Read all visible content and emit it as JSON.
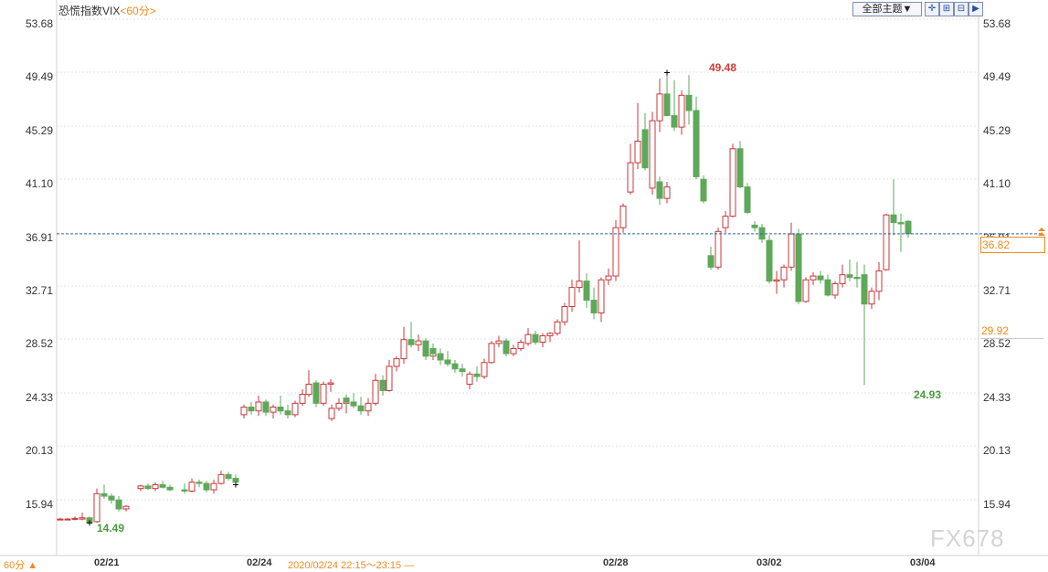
{
  "header": {
    "title": "恐慌指数VIX",
    "period_label": "<60分>",
    "theme_button": "全部主题▼",
    "toolbar_icons": [
      "crosshair-icon",
      "zoom-in-icon",
      "zoom-out-icon",
      "forward-icon"
    ]
  },
  "footer": {
    "period_selector": "60分 ▲",
    "range_label": "2020/02/24 22:15～23:15 —"
  },
  "markers": {
    "current_price": "36.82",
    "previous_close": "29.92",
    "high_label": "49.48",
    "low_label": "24.93",
    "start_low_label": "14.49"
  },
  "watermark": "FX678",
  "colors": {
    "up": "#c8373b",
    "down": "#5ea85a",
    "accent": "#f08a1c",
    "price_line": "#2b5fb3",
    "label_up": "#d23a3a",
    "label_down": "#4a9a3e"
  },
  "chart_data": {
    "type": "candlestick",
    "instrument": "恐慌指数VIX",
    "interval": "60分",
    "y_ticks": [
      "53.68",
      "49.49",
      "45.29",
      "41.10",
      "36.91",
      "32.71",
      "28.52",
      "24.33",
      "20.13",
      "15.94"
    ],
    "ylim": [
      11.75,
      53.68
    ],
    "x_ticks": [
      "02/21",
      "02/24",
      "02/28",
      "03/02",
      "03/04"
    ],
    "current_price": 36.82,
    "previous_close": 29.92,
    "candles": [
      [
        14.4,
        14.5,
        14.3,
        14.4
      ],
      [
        14.4,
        14.5,
        14.3,
        14.4
      ],
      [
        14.4,
        14.6,
        14.3,
        14.45
      ],
      [
        14.4,
        14.9,
        14.3,
        14.5
      ],
      [
        14.5,
        14.6,
        14.1,
        14.1
      ],
      [
        14.2,
        16.8,
        14.1,
        16.4
      ],
      [
        16.4,
        17.1,
        16.0,
        16.2
      ],
      [
        16.2,
        16.4,
        15.6,
        15.9
      ],
      [
        15.9,
        16.2,
        15.0,
        15.2
      ],
      [
        15.2,
        15.5,
        15.0,
        15.4
      ],
      [
        16.8,
        17.1,
        16.6,
        17.0
      ],
      [
        17.0,
        17.2,
        16.7,
        16.8
      ],
      [
        16.8,
        17.3,
        16.6,
        17.1
      ],
      [
        17.1,
        17.4,
        16.8,
        16.9
      ],
      [
        16.9,
        17.1,
        16.6,
        16.7
      ],
      [
        16.7,
        17.2,
        16.4,
        16.6
      ],
      [
        16.6,
        17.6,
        16.5,
        17.3
      ],
      [
        17.3,
        17.5,
        16.9,
        17.2
      ],
      [
        17.2,
        17.4,
        16.5,
        16.7
      ],
      [
        16.7,
        17.5,
        16.4,
        17.2
      ],
      [
        17.2,
        18.2,
        17.1,
        17.9
      ],
      [
        17.9,
        18.1,
        17.4,
        17.6
      ],
      [
        17.6,
        17.9,
        17.1,
        17.3
      ],
      [
        22.6,
        23.4,
        22.3,
        23.2
      ],
      [
        23.2,
        23.6,
        22.6,
        22.9
      ],
      [
        22.9,
        24.1,
        22.5,
        23.6
      ],
      [
        23.6,
        23.8,
        22.5,
        22.8
      ],
      [
        22.8,
        23.4,
        22.3,
        23.2
      ],
      [
        23.2,
        24.1,
        22.6,
        22.9
      ],
      [
        22.9,
        23.4,
        22.3,
        22.6
      ],
      [
        22.6,
        23.7,
        22.4,
        23.5
      ],
      [
        23.5,
        24.6,
        23.3,
        24.2
      ],
      [
        24.2,
        26.1,
        24.0,
        25.0
      ],
      [
        25.1,
        25.3,
        23.2,
        23.5
      ],
      [
        23.5,
        25.2,
        23.3,
        25.0
      ],
      [
        25.0,
        25.4,
        24.4,
        25.1
      ],
      [
        22.3,
        23.4,
        22.1,
        23.1
      ],
      [
        23.1,
        23.9,
        22.9,
        23.5
      ],
      [
        23.5,
        24.1,
        22.7,
        23.9
      ],
      [
        23.9,
        24.2,
        23.4,
        23.6
      ],
      [
        23.6,
        24.3,
        23.1,
        23.3
      ],
      [
        23.3,
        24.0,
        22.6,
        22.9
      ],
      [
        22.9,
        23.9,
        22.5,
        23.5
      ],
      [
        23.5,
        25.8,
        23.3,
        25.3
      ],
      [
        25.3,
        25.7,
        24.1,
        24.5
      ],
      [
        24.5,
        26.9,
        24.4,
        26.4
      ],
      [
        26.4,
        27.2,
        26.0,
        27.0
      ],
      [
        27.0,
        29.5,
        26.6,
        28.5
      ],
      [
        28.5,
        29.9,
        27.9,
        28.1
      ],
      [
        28.1,
        28.9,
        27.6,
        28.4
      ],
      [
        28.4,
        28.6,
        26.9,
        27.2
      ],
      [
        27.2,
        28.1,
        26.9,
        27.8
      ],
      [
        27.8,
        28.2,
        27.1,
        27.4
      ],
      [
        27.4,
        27.8,
        26.5,
        26.9
      ],
      [
        26.9,
        27.6,
        26.4,
        26.6
      ],
      [
        26.6,
        26.9,
        25.9,
        26.2
      ],
      [
        26.2,
        26.6,
        25.6,
        26.0
      ],
      [
        25.0,
        26.0,
        24.6,
        25.8
      ],
      [
        25.8,
        26.4,
        25.2,
        25.6
      ],
      [
        25.6,
        27.0,
        25.4,
        26.7
      ],
      [
        26.7,
        28.4,
        26.6,
        28.2
      ],
      [
        28.2,
        28.8,
        27.9,
        28.4
      ],
      [
        28.4,
        28.6,
        27.2,
        27.4
      ],
      [
        27.4,
        28.1,
        27.2,
        27.8
      ],
      [
        27.8,
        28.5,
        27.6,
        28.3
      ],
      [
        28.2,
        29.4,
        28.0,
        28.9
      ],
      [
        28.9,
        29.2,
        28.1,
        28.3
      ],
      [
        28.3,
        29.0,
        27.9,
        28.8
      ],
      [
        28.8,
        29.1,
        28.3,
        29.0
      ],
      [
        29.0,
        30.1,
        28.8,
        29.9
      ],
      [
        29.9,
        31.4,
        29.6,
        31.1
      ],
      [
        31.1,
        33.2,
        30.7,
        32.6
      ],
      [
        32.6,
        36.3,
        32.2,
        33.1
      ],
      [
        33.1,
        33.7,
        31.0,
        31.6
      ],
      [
        31.6,
        32.6,
        30.1,
        30.6
      ],
      [
        30.6,
        33.4,
        29.9,
        33.2
      ],
      [
        33.2,
        34.1,
        32.8,
        33.5
      ],
      [
        33.5,
        37.9,
        33.1,
        37.3
      ],
      [
        37.3,
        39.2,
        36.9,
        39.0
      ],
      [
        40.1,
        43.9,
        39.9,
        42.4
      ],
      [
        42.4,
        47.1,
        41.9,
        44.1
      ],
      [
        45.0,
        46.3,
        41.8,
        42.0
      ],
      [
        42.0,
        42.6,
        40.4,
        40.9
      ],
      [
        40.9,
        41.3,
        39.1,
        39.6
      ],
      [
        39.6,
        40.9,
        39.2,
        40.5
      ],
      [
        40.4,
        46.4,
        39.9,
        45.7
      ],
      [
        45.7,
        49.0,
        44.8,
        47.8
      ],
      [
        47.8,
        49.48,
        46.1,
        46.1
      ],
      [
        46.1,
        48.9,
        44.9,
        45.2
      ],
      [
        45.2,
        48.1,
        44.6,
        47.7
      ],
      [
        47.7,
        49.3,
        45.4,
        46.5
      ],
      [
        46.5,
        47.6,
        41.1,
        41.3
      ],
      [
        41.1,
        41.4,
        39.2,
        39.4
      ],
      [
        35.1,
        35.8,
        34.0,
        34.2
      ],
      [
        34.2,
        37.3,
        34.0,
        37.0
      ],
      [
        37.3,
        38.6,
        36.9,
        38.2
      ],
      [
        38.2,
        43.9,
        38.1,
        43.5
      ],
      [
        43.5,
        44.1,
        40.4,
        40.5
      ],
      [
        40.5,
        40.8,
        38.4,
        38.5
      ],
      [
        37.5,
        37.8,
        37.0,
        37.3
      ],
      [
        37.3,
        37.6,
        36.1,
        36.4
      ],
      [
        36.3,
        36.7,
        32.9,
        33.1
      ],
      [
        33.1,
        33.9,
        32.1,
        33.2
      ],
      [
        33.2,
        34.4,
        32.6,
        34.2
      ],
      [
        34.2,
        37.7,
        33.9,
        36.8
      ],
      [
        36.8,
        37.2,
        31.3,
        31.5
      ],
      [
        31.5,
        33.4,
        31.4,
        33.2
      ],
      [
        33.2,
        33.8,
        32.8,
        33.5
      ],
      [
        33.5,
        33.9,
        32.9,
        33.2
      ],
      [
        33.2,
        33.6,
        31.9,
        32.0
      ],
      [
        32.0,
        33.1,
        31.7,
        32.9
      ],
      [
        32.9,
        34.4,
        32.6,
        33.6
      ],
      [
        33.6,
        34.8,
        33.1,
        33.4
      ],
      [
        33.4,
        34.6,
        32.6,
        33.3
      ],
      [
        33.6,
        34.4,
        24.93,
        31.3
      ],
      [
        31.3,
        32.6,
        30.9,
        32.3
      ],
      [
        32.3,
        34.6,
        31.6,
        33.9
      ],
      [
        34.0,
        38.4,
        33.9,
        38.3
      ],
      [
        38.3,
        41.1,
        36.7,
        37.7
      ],
      [
        37.7,
        38.4,
        35.4,
        37.6
      ],
      [
        37.8,
        37.9,
        36.5,
        36.82
      ]
    ]
  }
}
